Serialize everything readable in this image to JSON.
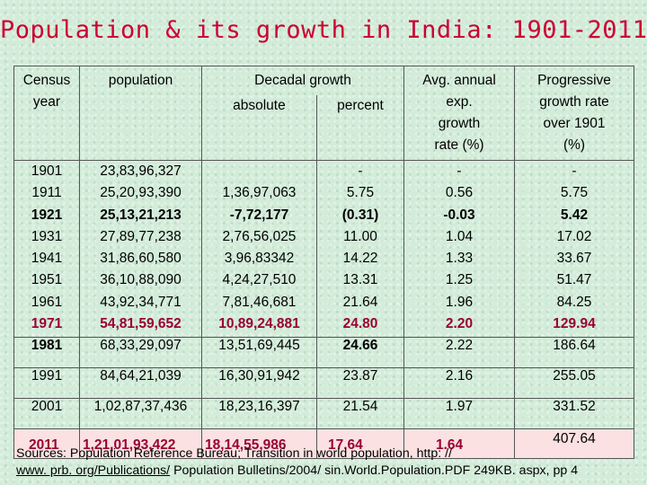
{
  "title": "Population & its growth in India: 1901-2011",
  "headers": {
    "census_year": [
      "Census",
      "year"
    ],
    "population": "population",
    "decadal_growth": "Decadal growth",
    "absolute": "absolute",
    "percent": "percent",
    "avg_annual": [
      "Avg. annual",
      "exp.",
      "growth",
      "rate (%)"
    ],
    "progressive": [
      "Progressive",
      "growth rate",
      "over 1901",
      "(%)"
    ]
  },
  "upper_rows": {
    "year": [
      "1901",
      "1911",
      "1921",
      "1931",
      "1941",
      "1951",
      "1961",
      "1971"
    ],
    "population": [
      "23,83,96,327",
      "25,20,93,390",
      "25,13,21,213",
      "27,89,77,238",
      "31,86,60,580",
      "36,10,88,090",
      "43,92,34,771",
      "54,81,59,652"
    ],
    "absolute": [
      "",
      "1,36,97,063",
      "-7,72,177",
      "2,76,56,025",
      "3,96,83342",
      "4,24,27,510",
      "7,81,46,681",
      "10,89,24,881"
    ],
    "percent": [
      "-",
      "5.75",
      "(0.31)",
      "11.00",
      "14.22",
      "13.31",
      "21.64",
      "24.80"
    ],
    "avg_annual": [
      "-",
      "0.56",
      "-0.03",
      "1.04",
      "1.33",
      "1.25",
      "1.96",
      "2.20"
    ],
    "progressive": [
      "-",
      "5.75",
      "5.42",
      "17.02",
      "33.67",
      "51.47",
      "84.25",
      "129.94"
    ]
  },
  "lower_rows": [
    {
      "year": "1981",
      "population": "68,33,29,097",
      "absolute": "13,51,69,445",
      "percent": "24.66",
      "avg_annual": "2.22",
      "progressive": "186.64"
    },
    {
      "year": "1991",
      "population": "84,64,21,039",
      "absolute": "16,30,91,942",
      "percent": "23.87",
      "avg_annual": "2.16",
      "progressive": "255.05"
    },
    {
      "year": "2001",
      "population": "1,02,87,37,436",
      "absolute": "18,23,16,397",
      "percent": "21.54",
      "avg_annual": "1.97",
      "progressive": "331.52"
    },
    {
      "year": "2011",
      "population": "1,21,01,93,422",
      "absolute": "18,14,55,986",
      "percent": "17.64",
      "avg_annual": "1.64",
      "progressive": "407.64"
    }
  ],
  "source": {
    "line1": "Sources: Population Reference Bureau; Transition in world population, http: //",
    "line2_link": "www. prb. org/Publications/",
    "line2_rest": " Population Bulletins/2004/ sin.World.Population.PDF 249KB. aspx, pp 4"
  },
  "colors": {
    "title": "#cc0033",
    "highlight": "#990033",
    "background": "#d3ecd9"
  }
}
